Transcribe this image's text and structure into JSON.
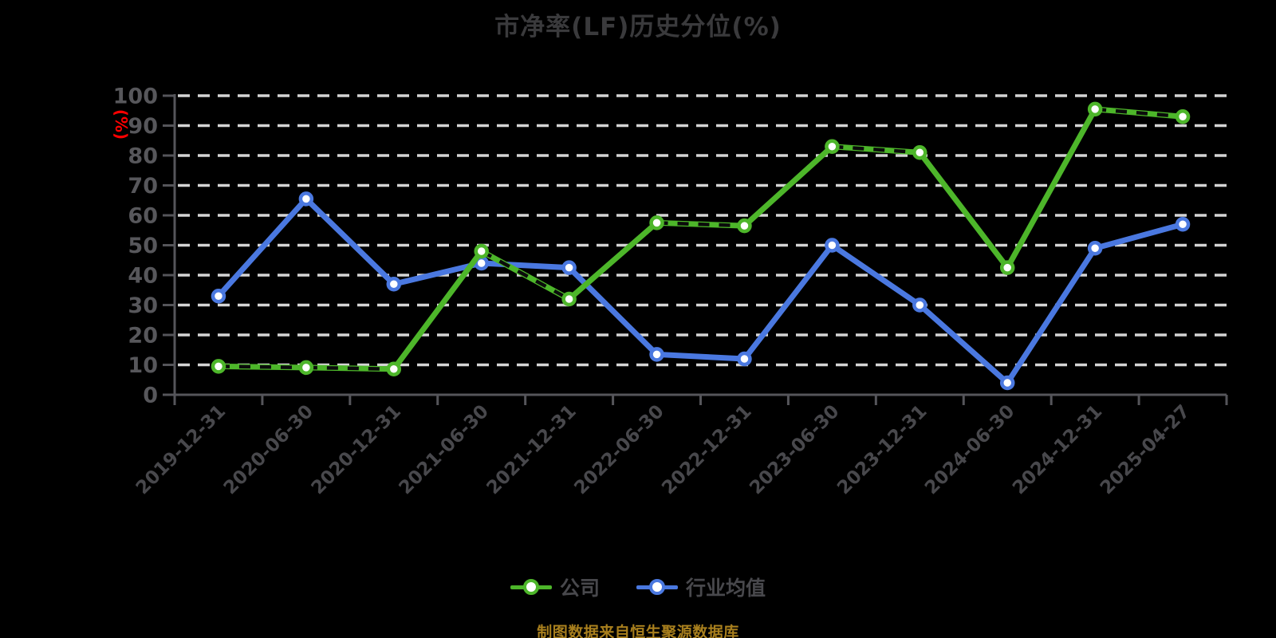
{
  "title": "市净率(LF)历史分位(%)",
  "y_axis": {
    "unit_label": "(%)"
  },
  "legend": {
    "items": [
      {
        "label": "公司",
        "color": "#4DB62A"
      },
      {
        "label": "行业均值",
        "color": "#4A78E0"
      }
    ]
  },
  "footer": {
    "text": "制图数据来自恒生聚源数据库"
  },
  "colors": {
    "background": "#000000",
    "title": "#3A3A3C",
    "axis": "#55555A",
    "grid": "#D4D4D4",
    "y_tick_label": "#57575B",
    "x_tick_label": "#48484C",
    "unit_label": "#FF0000",
    "legend_text": "#48484C",
    "footer_text": "#A87F1D",
    "company": "#4DB62A",
    "industry": "#4A78E0",
    "marker_fill": "#FFFFFF",
    "dash_overlay": "#0B0B0B"
  },
  "chart_data": {
    "type": "line",
    "title": "市净率(LF)历史分位(%)",
    "categories": [
      "2019-12-31",
      "2020-06-30",
      "2020-12-31",
      "2021-06-30",
      "2021-12-31",
      "2022-06-30",
      "2022-12-31",
      "2023-06-30",
      "2023-12-31",
      "2024-06-30",
      "2024-12-31",
      "2025-04-27"
    ],
    "series": [
      {
        "name": "公司",
        "color": "#4DB62A",
        "marker": "circle-white-fill",
        "values": [
          9.5,
          9.1,
          8.6,
          48,
          32,
          57.5,
          56.5,
          83,
          81,
          42.5,
          95.5,
          93
        ]
      },
      {
        "name": "行业均值",
        "color": "#4A78E0",
        "marker": "circle-white-fill",
        "values": [
          33,
          65.5,
          37,
          44,
          42.5,
          13.5,
          12,
          50,
          30,
          4,
          49,
          57
        ]
      }
    ],
    "xlabel": "",
    "ylabel": "(%)",
    "ylim": [
      0,
      100
    ],
    "y_ticks": [
      0,
      10,
      20,
      30,
      40,
      50,
      60,
      70,
      80,
      90,
      100
    ],
    "grid": "horizontal dashed white lines",
    "legend_position": "bottom",
    "source_note": "制图数据来自恒生聚源数据库"
  }
}
